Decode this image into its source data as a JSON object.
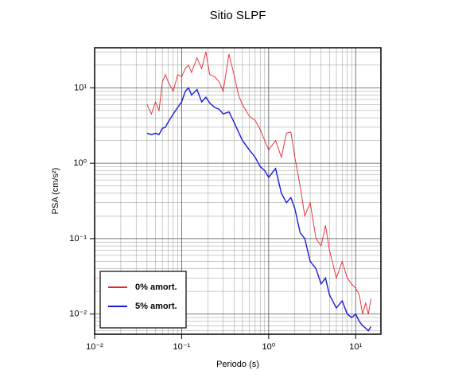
{
  "chart_data": {
    "type": "line",
    "title": "Sitio SLPF",
    "x_label": "Periodo (s)",
    "y_label": "PSA (cm/s²)",
    "x": [
      0.04,
      0.045,
      0.05,
      0.055,
      0.06,
      0.065,
      0.07,
      0.08,
      0.09,
      0.1,
      0.11,
      0.12,
      0.13,
      0.15,
      0.17,
      0.19,
      0.21,
      0.24,
      0.27,
      0.3,
      0.35,
      0.4,
      0.45,
      0.5,
      0.6,
      0.7,
      0.8,
      0.9,
      1.0,
      1.2,
      1.4,
      1.6,
      1.8,
      2.0,
      2.3,
      2.6,
      3.0,
      3.5,
      4,
      4.5,
      5,
      6,
      7,
      8,
      9,
      10,
      11,
      12,
      13,
      14,
      15
    ],
    "series": [
      {
        "name": "0% amort.",
        "color": "#e8232b",
        "values": [
          6,
          4.5,
          6.5,
          5,
          12,
          15,
          12,
          9,
          15,
          14,
          18,
          20,
          16,
          25,
          18,
          30,
          15,
          14,
          12,
          9,
          28,
          15,
          8,
          6,
          4.2,
          3.7,
          2.8,
          2.0,
          1.5,
          2.0,
          1.2,
          2.5,
          2.6,
          1.2,
          0.5,
          0.2,
          0.3,
          0.1,
          0.08,
          0.15,
          0.07,
          0.03,
          0.05,
          0.03,
          0.025,
          0.022,
          0.018,
          0.01,
          0.014,
          0.01,
          0.016
        ]
      },
      {
        "name": "5% amort.",
        "color": "#1a1ae0",
        "values": [
          2.5,
          2.4,
          2.5,
          2.4,
          2.9,
          3,
          3.5,
          4.5,
          5.5,
          6.5,
          9,
          10,
          8,
          9.5,
          6.5,
          7.5,
          6.3,
          5.5,
          5.2,
          4.5,
          4.8,
          3.5,
          2.6,
          2.0,
          1.5,
          1.2,
          0.9,
          0.8,
          0.65,
          0.85,
          0.4,
          0.3,
          0.35,
          0.25,
          0.12,
          0.1,
          0.05,
          0.04,
          0.025,
          0.03,
          0.018,
          0.012,
          0.015,
          0.01,
          0.009,
          0.01,
          0.008,
          0.007,
          0.0065,
          0.006,
          0.0068
        ]
      }
    ],
    "xlog": true,
    "ylog": true,
    "grid": true,
    "legend": "lower left",
    "xlim": [
      0.01,
      19.5
    ],
    "ylim": [
      0.0054,
      34
    ],
    "xticks": [
      {
        "value": 0.01,
        "label": "10⁻²"
      },
      {
        "value": 0.1,
        "label": "10⁻¹"
      },
      {
        "value": 1,
        "label": "10⁰"
      },
      {
        "value": 10,
        "label": "10¹"
      }
    ],
    "yticks": [
      {
        "value": 0.01,
        "label": "10⁻²"
      },
      {
        "value": 0.1,
        "label": "10⁻¹"
      },
      {
        "value": 1,
        "label": "10⁰"
      },
      {
        "value": 10,
        "label": "10¹"
      }
    ],
    "xminorticks": [
      0.02,
      0.03,
      0.04,
      0.05,
      0.06,
      0.07,
      0.08,
      0.09,
      0.2,
      0.3,
      0.4,
      0.5,
      0.6,
      0.7,
      0.8,
      0.9,
      2,
      3,
      4,
      5,
      6,
      7,
      8,
      9
    ],
    "yminorticks": [
      0.006,
      0.007,
      0.008,
      0.009,
      0.02,
      0.03,
      0.04,
      0.05,
      0.06,
      0.07,
      0.08,
      0.09,
      0.2,
      0.3,
      0.4,
      0.5,
      0.6,
      0.7,
      0.8,
      0.9,
      2,
      3,
      4,
      5,
      6,
      7,
      8,
      9,
      20,
      30
    ]
  }
}
